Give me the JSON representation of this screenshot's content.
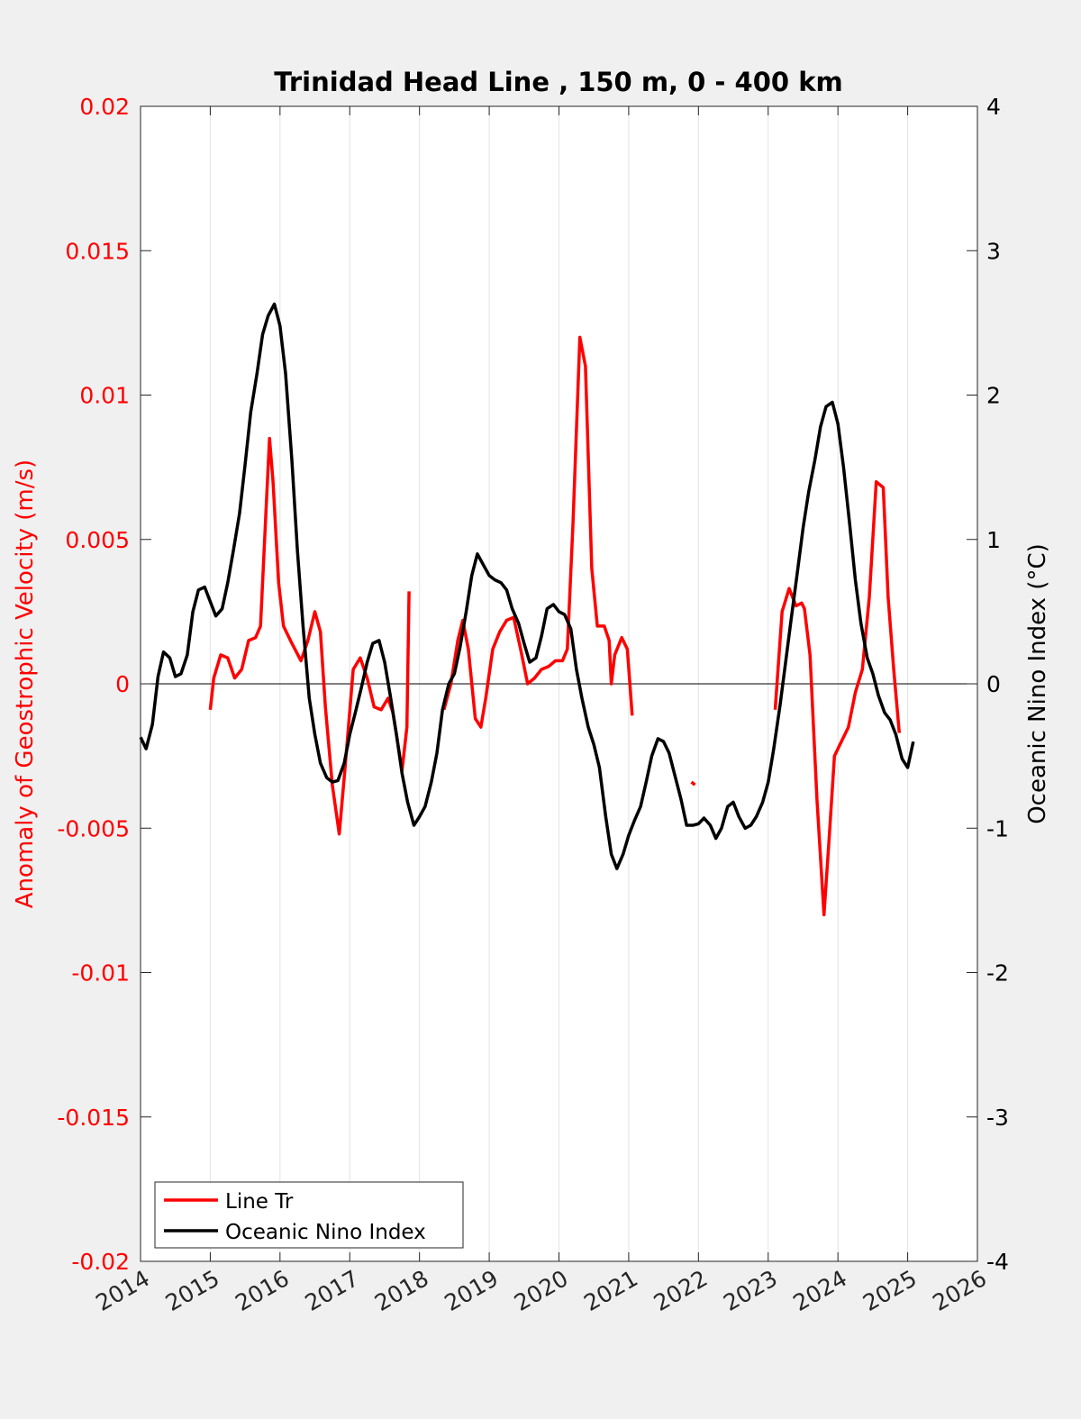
{
  "chart_data": {
    "type": "line",
    "title": "Trinidad Head Line , 150 m, 0 - 400 km",
    "xlabel": "",
    "ylabel_left": "Anomaly of Geostrophic Velocity (m/s)",
    "ylabel_right": "Oceanic Nino Index (°C)",
    "x_ticks": [
      "2014",
      "2015",
      "2016",
      "2017",
      "2018",
      "2019",
      "2020",
      "2021",
      "2022",
      "2023",
      "2024",
      "2025",
      "2026"
    ],
    "xlim": [
      2014,
      2026
    ],
    "ylim_left": [
      -0.02,
      0.02
    ],
    "ylim_right": [
      -4,
      4
    ],
    "y_ticks_left": [
      "0.02",
      "0.015",
      "0.01",
      "0.005",
      "0",
      "-0.005",
      "-0.01",
      "-0.015",
      "-0.02"
    ],
    "y_ticks_right": [
      "4",
      "3",
      "2",
      "1",
      "0",
      "-1",
      "-2",
      "-3",
      "-4"
    ],
    "grid": "vertical",
    "legend_position": "bottom-left",
    "colors": {
      "line_tr": "#ff0000",
      "oni": "#000000",
      "left_axis": "#ff0000",
      "right_axis": "#000000",
      "background": "#f0f0f0",
      "plot_bg": "#ffffff"
    },
    "series": [
      {
        "name": "Line Tr",
        "axis": "left",
        "color": "#ff0000",
        "segments": [
          [
            [
              2015.0,
              -0.0009
            ],
            [
              2015.05,
              0.0002
            ],
            [
              2015.15,
              0.001
            ],
            [
              2015.25,
              0.0009
            ],
            [
              2015.35,
              0.0002
            ],
            [
              2015.45,
              0.0005
            ],
            [
              2015.55,
              0.0015
            ],
            [
              2015.65,
              0.0016
            ],
            [
              2015.72,
              0.002
            ],
            [
              2015.8,
              0.006
            ],
            [
              2015.85,
              0.0085
            ],
            [
              2015.9,
              0.007
            ],
            [
              2015.98,
              0.0035
            ],
            [
              2016.05,
              0.002
            ],
            [
              2016.15,
              0.0015
            ],
            [
              2016.3,
              0.0008
            ],
            [
              2016.4,
              0.0015
            ],
            [
              2016.5,
              0.0025
            ],
            [
              2016.58,
              0.0018
            ],
            [
              2016.65,
              -0.0008
            ],
            [
              2016.75,
              -0.0035
            ],
            [
              2016.85,
              -0.0052
            ],
            [
              2016.93,
              -0.003
            ],
            [
              2017.05,
              0.0005
            ],
            [
              2017.15,
              0.0009
            ],
            [
              2017.25,
              0.0002
            ],
            [
              2017.35,
              -0.0008
            ],
            [
              2017.45,
              -0.0009
            ],
            [
              2017.55,
              -0.0005
            ],
            [
              2017.62,
              -0.001
            ],
            [
              2017.75,
              -0.003
            ],
            [
              2017.82,
              -0.0015
            ],
            [
              2017.85,
              0.0032
            ]
          ],
          [
            [
              2018.35,
              -0.0009
            ],
            [
              2018.45,
              0.0
            ],
            [
              2018.55,
              0.0015
            ],
            [
              2018.62,
              0.0022
            ],
            [
              2018.7,
              0.0012
            ],
            [
              2018.8,
              -0.0012
            ],
            [
              2018.88,
              -0.0015
            ],
            [
              2018.95,
              -0.0005
            ],
            [
              2019.05,
              0.0012
            ],
            [
              2019.15,
              0.0018
            ],
            [
              2019.25,
              0.0022
            ],
            [
              2019.35,
              0.0023
            ],
            [
              2019.45,
              0.0012
            ],
            [
              2019.55,
              0.0
            ],
            [
              2019.65,
              0.0002
            ],
            [
              2019.75,
              0.0005
            ],
            [
              2019.85,
              0.0006
            ],
            [
              2019.95,
              0.0008
            ],
            [
              2020.05,
              0.0008
            ],
            [
              2020.12,
              0.0012
            ],
            [
              2020.2,
              0.0055
            ],
            [
              2020.3,
              0.012
            ],
            [
              2020.38,
              0.011
            ],
            [
              2020.47,
              0.004
            ],
            [
              2020.55,
              0.002
            ],
            [
              2020.65,
              0.002
            ],
            [
              2020.72,
              0.0015
            ],
            [
              2020.75,
              0.0
            ],
            [
              2020.8,
              0.001
            ],
            [
              2020.9,
              0.0016
            ],
            [
              2020.98,
              0.0012
            ],
            [
              2021.05,
              -0.0011
            ]
          ],
          [
            [
              2021.9,
              -0.0034
            ],
            [
              2021.95,
              -0.0035
            ]
          ],
          [
            [
              2023.1,
              -0.0009
            ],
            [
              2023.2,
              0.0025
            ],
            [
              2023.3,
              0.0033
            ],
            [
              2023.4,
              0.0027
            ],
            [
              2023.48,
              0.0028
            ],
            [
              2023.52,
              0.0026
            ],
            [
              2023.6,
              0.001
            ],
            [
              2023.7,
              -0.004
            ],
            [
              2023.8,
              -0.008
            ],
            [
              2023.87,
              -0.0055
            ],
            [
              2023.95,
              -0.0025
            ],
            [
              2024.05,
              -0.002
            ],
            [
              2024.15,
              -0.0015
            ],
            [
              2024.25,
              -0.0003
            ],
            [
              2024.35,
              0.0005
            ],
            [
              2024.45,
              0.003
            ],
            [
              2024.55,
              0.007
            ],
            [
              2024.65,
              0.0068
            ],
            [
              2024.72,
              0.003
            ],
            [
              2024.8,
              0.0005
            ],
            [
              2024.88,
              -0.0017
            ]
          ]
        ]
      },
      {
        "name": "Oceanic Nino Index",
        "axis": "right",
        "color": "#000000",
        "segments": [
          [
            [
              2014.0,
              -0.37
            ],
            [
              2014.08,
              -0.45
            ],
            [
              2014.17,
              -0.28
            ],
            [
              2014.25,
              0.05
            ],
            [
              2014.33,
              0.22
            ],
            [
              2014.42,
              0.18
            ],
            [
              2014.5,
              0.05
            ],
            [
              2014.58,
              0.07
            ],
            [
              2014.67,
              0.2
            ],
            [
              2014.75,
              0.5
            ],
            [
              2014.83,
              0.65
            ],
            [
              2014.92,
              0.67
            ],
            [
              2015.0,
              0.57
            ],
            [
              2015.08,
              0.47
            ],
            [
              2015.17,
              0.52
            ],
            [
              2015.25,
              0.7
            ],
            [
              2015.33,
              0.92
            ],
            [
              2015.42,
              1.18
            ],
            [
              2015.5,
              1.52
            ],
            [
              2015.58,
              1.88
            ],
            [
              2015.67,
              2.15
            ],
            [
              2015.75,
              2.42
            ],
            [
              2015.83,
              2.55
            ],
            [
              2015.92,
              2.63
            ],
            [
              2016.0,
              2.48
            ],
            [
              2016.08,
              2.15
            ],
            [
              2016.17,
              1.55
            ],
            [
              2016.25,
              0.92
            ],
            [
              2016.33,
              0.4
            ],
            [
              2016.42,
              -0.1
            ],
            [
              2016.5,
              -0.35
            ],
            [
              2016.58,
              -0.55
            ],
            [
              2016.67,
              -0.65
            ],
            [
              2016.75,
              -0.68
            ],
            [
              2016.83,
              -0.67
            ],
            [
              2016.92,
              -0.55
            ],
            [
              2017.0,
              -0.35
            ],
            [
              2017.08,
              -0.2
            ],
            [
              2017.17,
              -0.02
            ],
            [
              2017.25,
              0.15
            ],
            [
              2017.33,
              0.28
            ],
            [
              2017.42,
              0.3
            ],
            [
              2017.5,
              0.15
            ],
            [
              2017.58,
              -0.08
            ],
            [
              2017.67,
              -0.35
            ],
            [
              2017.75,
              -0.62
            ],
            [
              2017.83,
              -0.82
            ],
            [
              2017.92,
              -0.98
            ],
            [
              2018.0,
              -0.92
            ],
            [
              2018.08,
              -0.85
            ],
            [
              2018.17,
              -0.68
            ],
            [
              2018.25,
              -0.48
            ],
            [
              2018.33,
              -0.18
            ],
            [
              2018.42,
              0.0
            ],
            [
              2018.5,
              0.07
            ],
            [
              2018.58,
              0.25
            ],
            [
              2018.67,
              0.5
            ],
            [
              2018.75,
              0.75
            ],
            [
              2018.83,
              0.9
            ],
            [
              2018.92,
              0.82
            ],
            [
              2019.0,
              0.75
            ],
            [
              2019.08,
              0.72
            ],
            [
              2019.17,
              0.7
            ],
            [
              2019.25,
              0.65
            ],
            [
              2019.33,
              0.52
            ],
            [
              2019.42,
              0.42
            ],
            [
              2019.5,
              0.28
            ],
            [
              2019.58,
              0.15
            ],
            [
              2019.67,
              0.18
            ],
            [
              2019.75,
              0.33
            ],
            [
              2019.83,
              0.52
            ],
            [
              2019.92,
              0.55
            ],
            [
              2020.0,
              0.5
            ],
            [
              2020.08,
              0.48
            ],
            [
              2020.17,
              0.38
            ],
            [
              2020.25,
              0.1
            ],
            [
              2020.33,
              -0.1
            ],
            [
              2020.42,
              -0.3
            ],
            [
              2020.5,
              -0.42
            ],
            [
              2020.58,
              -0.58
            ],
            [
              2020.67,
              -0.92
            ],
            [
              2020.75,
              -1.18
            ],
            [
              2020.83,
              -1.28
            ],
            [
              2020.92,
              -1.18
            ],
            [
              2021.0,
              -1.05
            ],
            [
              2021.08,
              -0.95
            ],
            [
              2021.17,
              -0.85
            ],
            [
              2021.25,
              -0.68
            ],
            [
              2021.33,
              -0.5
            ],
            [
              2021.42,
              -0.38
            ],
            [
              2021.5,
              -0.4
            ],
            [
              2021.58,
              -0.48
            ],
            [
              2021.67,
              -0.65
            ],
            [
              2021.75,
              -0.8
            ],
            [
              2021.83,
              -0.98
            ],
            [
              2021.92,
              -0.98
            ],
            [
              2022.0,
              -0.97
            ],
            [
              2022.08,
              -0.93
            ],
            [
              2022.17,
              -0.98
            ],
            [
              2022.25,
              -1.07
            ],
            [
              2022.33,
              -1.0
            ],
            [
              2022.42,
              -0.85
            ],
            [
              2022.5,
              -0.82
            ],
            [
              2022.58,
              -0.92
            ],
            [
              2022.67,
              -1.0
            ],
            [
              2022.75,
              -0.98
            ],
            [
              2022.83,
              -0.92
            ],
            [
              2022.92,
              -0.82
            ],
            [
              2023.0,
              -0.68
            ],
            [
              2023.08,
              -0.45
            ],
            [
              2023.17,
              -0.15
            ],
            [
              2023.25,
              0.15
            ],
            [
              2023.33,
              0.45
            ],
            [
              2023.42,
              0.78
            ],
            [
              2023.5,
              1.08
            ],
            [
              2023.58,
              1.33
            ],
            [
              2023.67,
              1.55
            ],
            [
              2023.75,
              1.78
            ],
            [
              2023.83,
              1.92
            ],
            [
              2023.92,
              1.95
            ],
            [
              2024.0,
              1.8
            ],
            [
              2024.08,
              1.5
            ],
            [
              2024.17,
              1.1
            ],
            [
              2024.25,
              0.72
            ],
            [
              2024.33,
              0.42
            ],
            [
              2024.42,
              0.18
            ],
            [
              2024.5,
              0.07
            ],
            [
              2024.58,
              -0.08
            ],
            [
              2024.67,
              -0.2
            ],
            [
              2024.75,
              -0.25
            ],
            [
              2024.83,
              -0.35
            ],
            [
              2024.92,
              -0.52
            ],
            [
              2025.0,
              -0.58
            ],
            [
              2025.08,
              -0.4
            ]
          ]
        ]
      }
    ]
  }
}
